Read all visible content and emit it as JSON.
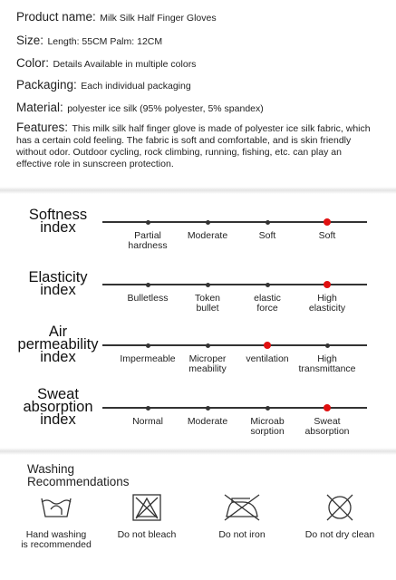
{
  "specs": [
    {
      "label": "Product name:",
      "value": "Milk Silk Half Finger Gloves"
    },
    {
      "label": "Size:",
      "value": "Length: 55CM Palm: 12CM"
    },
    {
      "label": "Color:",
      "value": "Details Available in multiple colors"
    },
    {
      "label": "Packaging:",
      "value": "Each individual packaging"
    },
    {
      "label": "Material:",
      "value": "polyester ice silk (95% polyester, 5% spandex)"
    }
  ],
  "features": {
    "label": "Features:",
    "text": "This milk silk half finger glove is made of polyester ice silk fabric, which has a certain cold feeling. The fabric is soft and comfortable, and is skin friendly without odor. Outdoor cycling, rock climbing, running, fishing, etc. can play an effective role in sunscreen protection."
  },
  "indexes": [
    {
      "name": "Softness\nindex",
      "options": [
        "Partial\nhardness",
        "Moderate",
        "Soft",
        "Soft"
      ],
      "selected": 3
    },
    {
      "name": "Elasticity\nindex",
      "options": [
        "Bulletless",
        "Token\nbullet",
        "elastic\nforce",
        "High\nelasticity"
      ],
      "selected": 3
    },
    {
      "name": "Air\npermeability\nindex",
      "options": [
        "Impermeable",
        "Microper\nmeability",
        "ventilation",
        "High\ntransmittance"
      ],
      "selected": 2
    },
    {
      "name": "Sweat\nabsorption\nindex",
      "options": [
        "Normal",
        "Moderate",
        "Microab\nsorption",
        "Sweat\nabsorption"
      ],
      "selected": 3
    }
  ],
  "washing": {
    "title": "Washing\nRecommendations",
    "items": [
      "Hand washing\nis recommended",
      "Do not bleach",
      "Do not iron",
      "Do not dry clean"
    ]
  }
}
